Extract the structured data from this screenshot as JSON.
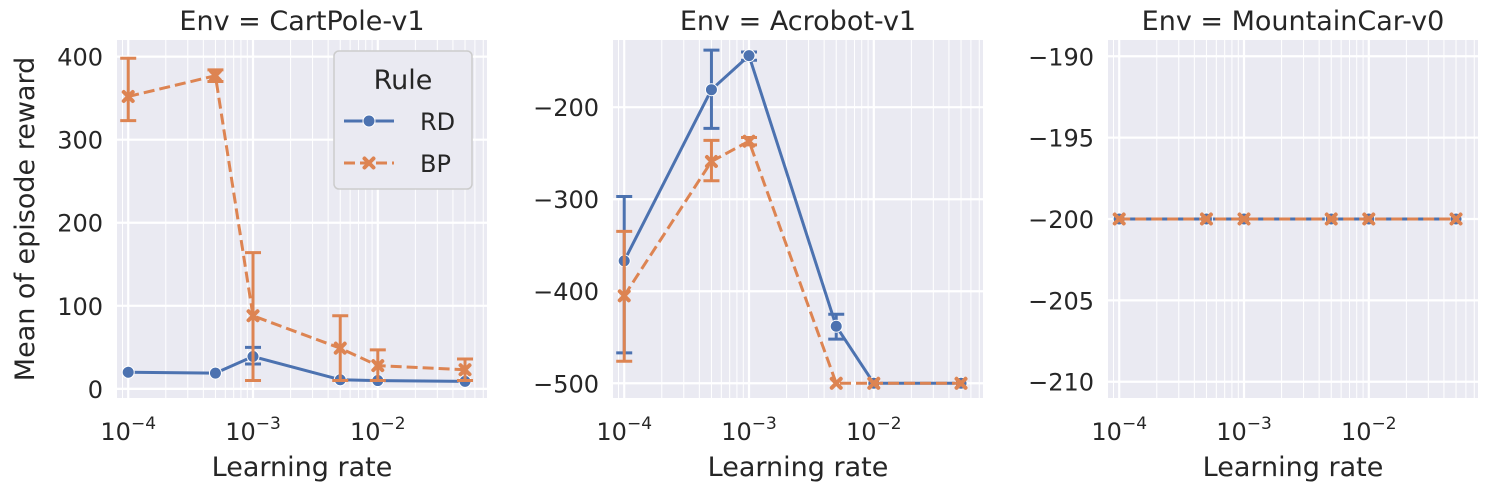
{
  "chart_data": [
    {
      "type": "line",
      "title": "Env = CartPole-v1",
      "xlabel": "Learning rate",
      "ylabel": "Mean of episode reward",
      "xscale": "log",
      "xlim": [
        8.13e-05,
        0.075
      ],
      "ylim": [
        -11,
        420
      ],
      "yticks": [
        0,
        100,
        200,
        300,
        400
      ],
      "xticks": [
        {
          "v": 0.0001,
          "base": "10",
          "exp": "−4"
        },
        {
          "v": 0.001,
          "base": "10",
          "exp": "−3"
        },
        {
          "v": 0.01,
          "base": "10",
          "exp": "−2"
        }
      ],
      "grid": true,
      "legend": {
        "title": "Rule",
        "location": "upper right"
      },
      "x": [
        0.0001,
        0.0005,
        0.001,
        0.005,
        0.01,
        0.05
      ],
      "series": [
        {
          "name": "RD",
          "color": "#4c72b0",
          "marker": "circle",
          "linestyle": "solid",
          "values": [
            20,
            19,
            39,
            11,
            10,
            9
          ],
          "err_low": [
            null,
            null,
            30,
            null,
            null,
            null
          ],
          "err_high": [
            null,
            null,
            50,
            null,
            null,
            null
          ]
        },
        {
          "name": "BP",
          "color": "#dd8452",
          "marker": "x",
          "linestyle": "dashed",
          "values": [
            352,
            377,
            88,
            49,
            28,
            23
          ],
          "err_low": [
            323,
            370,
            10,
            10,
            10,
            10
          ],
          "err_high": [
            398,
            384,
            164,
            88,
            47,
            36
          ]
        }
      ]
    },
    {
      "type": "line",
      "title": "Env = Acrobot-v1",
      "xlabel": "Learning rate",
      "ylabel": "",
      "xscale": "log",
      "xlim": [
        8.13e-05,
        0.075
      ],
      "ylim": [
        -516,
        -127
      ],
      "yticks": [
        -200,
        -300,
        -400,
        -500
      ],
      "xticks": [
        {
          "v": 0.0001,
          "base": "10",
          "exp": "−4"
        },
        {
          "v": 0.001,
          "base": "10",
          "exp": "−3"
        },
        {
          "v": 0.01,
          "base": "10",
          "exp": "−2"
        }
      ],
      "grid": true,
      "x": [
        0.0001,
        0.0005,
        0.001,
        0.005,
        0.01,
        0.05
      ],
      "series": [
        {
          "name": "RD",
          "color": "#4c72b0",
          "marker": "circle",
          "linestyle": "solid",
          "values": [
            -367,
            -181,
            -144,
            -438,
            -500,
            -500
          ],
          "err_low": [
            -467,
            -223,
            -149,
            -452,
            null,
            null
          ],
          "err_high": [
            -297,
            -138,
            -140,
            -425,
            null,
            null
          ]
        },
        {
          "name": "BP",
          "color": "#dd8452",
          "marker": "x",
          "linestyle": "dashed",
          "values": [
            -405,
            -259,
            -237,
            -500,
            -500,
            -500
          ],
          "err_low": [
            -476,
            -280,
            -241,
            null,
            null,
            null
          ],
          "err_high": [
            -335,
            -236,
            -233,
            null,
            null,
            null
          ]
        }
      ]
    },
    {
      "type": "line",
      "title": "Env = MountainCar-v0",
      "xlabel": "Learning rate",
      "ylabel": "",
      "xscale": "log",
      "xlim": [
        8.13e-05,
        0.075
      ],
      "ylim": [
        -211,
        -189
      ],
      "yticks": [
        -190,
        -195,
        -200,
        -205,
        -210
      ],
      "xticks": [
        {
          "v": 0.0001,
          "base": "10",
          "exp": "−4"
        },
        {
          "v": 0.001,
          "base": "10",
          "exp": "−3"
        },
        {
          "v": 0.01,
          "base": "10",
          "exp": "−2"
        }
      ],
      "grid": true,
      "x": [
        0.0001,
        0.0005,
        0.001,
        0.005,
        0.01,
        0.05
      ],
      "series": [
        {
          "name": "RD",
          "color": "#4c72b0",
          "marker": "circle",
          "linestyle": "solid",
          "values": [
            -200,
            -200,
            -200,
            -200,
            -200,
            -200
          ]
        },
        {
          "name": "BP",
          "color": "#dd8452",
          "marker": "x",
          "linestyle": "dashed",
          "values": [
            -200,
            -200,
            -200,
            -200,
            -200,
            -200
          ]
        }
      ]
    }
  ]
}
